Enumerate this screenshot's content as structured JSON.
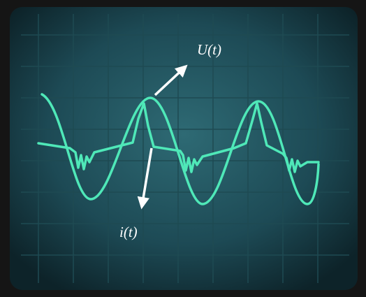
{
  "labels": {
    "voltage": "U(t)",
    "current": "i(t)"
  }
}
